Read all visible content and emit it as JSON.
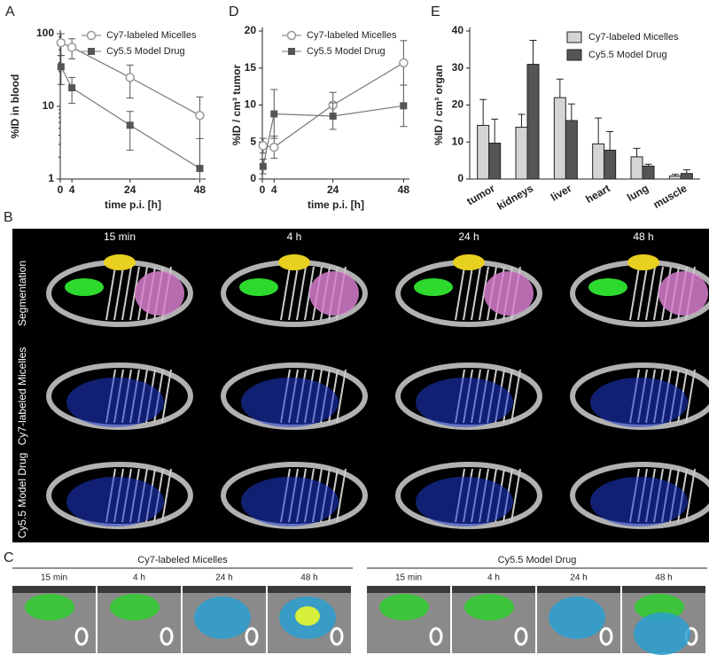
{
  "chart_data": [
    {
      "type": "line",
      "label": "A",
      "xlabel": "time p.i. [h]",
      "ylabel": "%ID in blood",
      "log_y": true,
      "x": [
        0.25,
        4,
        24,
        48
      ],
      "xlim": [
        0,
        50
      ],
      "xticks": [
        0,
        4,
        24,
        48
      ],
      "ylim": [
        1,
        100
      ],
      "yticks": [
        1,
        10,
        100
      ],
      "series": [
        {
          "name": "Cy7-labeled Micelles",
          "color": "#999999",
          "marker": "circle",
          "values": [
            75,
            65,
            25,
            7.5
          ],
          "errors": [
            25,
            20,
            12,
            6
          ]
        },
        {
          "name": "Cy5.5 Model Drug",
          "color": "#555555",
          "marker": "square",
          "values": [
            35,
            18,
            5.5,
            1.4
          ],
          "errors": [
            15,
            7,
            3,
            2.2
          ]
        }
      ]
    },
    {
      "type": "line",
      "label": "D",
      "xlabel": "time p.i. [h]",
      "ylabel": "%ID / cm³ tumor",
      "log_y": false,
      "x": [
        0.25,
        4,
        24,
        48
      ],
      "xlim": [
        0,
        50
      ],
      "xticks": [
        0,
        4,
        24,
        48
      ],
      "ylim": [
        0,
        20
      ],
      "yticks": [
        0,
        5,
        10,
        15,
        20
      ],
      "series": [
        {
          "name": "Cy7-labeled Micelles",
          "color": "#999999",
          "marker": "circle",
          "values": [
            4.5,
            4.3,
            10,
            15.7
          ],
          "errors": [
            1,
            1.5,
            1.7,
            3
          ]
        },
        {
          "name": "Cy5.5 Model Drug",
          "color": "#555555",
          "marker": "square",
          "values": [
            1.7,
            8.8,
            8.5,
            9.9
          ],
          "errors": [
            1,
            3.3,
            1.8,
            2.8
          ]
        }
      ]
    },
    {
      "type": "bar",
      "label": "E",
      "ylabel": "%ID / cm³ organ",
      "categories": [
        "tumor",
        "kidneys",
        "liver",
        "heart",
        "lung",
        "muscle"
      ],
      "ylim": [
        0,
        40
      ],
      "yticks": [
        0,
        10,
        20,
        30,
        40
      ],
      "series": [
        {
          "name": "Cy7-labeled Micelles",
          "color": "#d4d4d4",
          "values": [
            14.5,
            14,
            22,
            9.5,
            6,
            0.8
          ],
          "errors": [
            7,
            3.5,
            5,
            7,
            2.3,
            0.5
          ]
        },
        {
          "name": "Cy5.5 Model Drug",
          "color": "#555555",
          "values": [
            9.7,
            31,
            15.8,
            7.8,
            3.5,
            1.5
          ],
          "errors": [
            6.5,
            6.5,
            4.5,
            5,
            0.5,
            1
          ]
        }
      ]
    }
  ],
  "panel_b": {
    "label": "B",
    "times": [
      "15 min",
      "4 h",
      "24 h",
      "48 h"
    ],
    "rows": [
      "Segmentation",
      "Cy7-labeled Micelles",
      "Cy5.5 Model Drug"
    ]
  },
  "panel_c": {
    "label": "C",
    "groups": [
      {
        "title": "Cy7-labeled Micelles",
        "times": [
          "15 min",
          "4 h",
          "24 h",
          "48 h"
        ]
      },
      {
        "title": "Cy5.5 Model Drug",
        "times": [
          "15 min",
          "4 h",
          "24 h",
          "48 h"
        ]
      }
    ]
  }
}
